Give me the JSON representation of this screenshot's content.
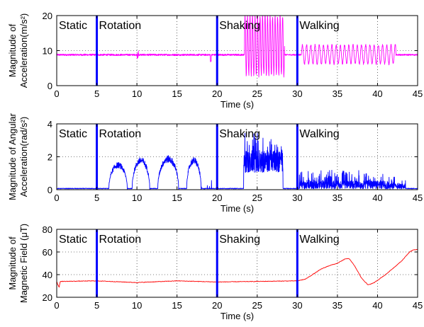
{
  "chart_data": [
    {
      "type": "line",
      "xlabel": "Time (s)",
      "ylabel_lines": [
        "Magnitude of",
        "Acceleration(m/s²)"
      ],
      "xlim": [
        0,
        45
      ],
      "ylim": [
        0,
        20
      ],
      "xticks": [
        0,
        5,
        10,
        15,
        20,
        25,
        30,
        35,
        40,
        45
      ],
      "yticks": [
        0,
        10,
        20
      ],
      "grid": "dotted",
      "series_color": "#ff00ff",
      "boundary_color": "#0000ff",
      "boundaries": [
        5,
        20,
        30
      ],
      "phases": [
        {
          "label": "Static",
          "x": 0
        },
        {
          "label": "Rotation",
          "x": 5
        },
        {
          "label": "Shaking",
          "x": 20
        },
        {
          "label": "Walking",
          "x": 30
        }
      ],
      "segments": [
        {
          "t0": 0,
          "t1": 23.4,
          "base": 8.8,
          "noise": 0.25
        },
        {
          "t0": 23.4,
          "t1": 28.4,
          "base": 11.5,
          "amp": 8.5,
          "freq": 3.2,
          "noise": 0.6
        },
        {
          "t0": 28.4,
          "t1": 30.5,
          "base": 8.8,
          "noise": 0.2
        },
        {
          "t0": 30.5,
          "t1": 42.3,
          "base": 8.9,
          "amp": 2.7,
          "freq": 1.9,
          "noise": 0.3
        },
        {
          "t0": 42.3,
          "t1": 45,
          "base": 8.8,
          "noise": 0.2
        }
      ]
    },
    {
      "type": "line",
      "xlabel": "Time (s)",
      "ylabel_lines": [
        "Magnitude of Angular",
        "Acceleration(rad/s²)"
      ],
      "xlim": [
        0,
        45
      ],
      "ylim": [
        0,
        4
      ],
      "xticks": [
        0,
        5,
        10,
        15,
        20,
        25,
        30,
        35,
        40,
        45
      ],
      "yticks": [
        0,
        2,
        4
      ],
      "grid": "dotted",
      "series_color": "#0000ff",
      "boundary_color": "#0000ff",
      "boundaries": [
        5,
        20,
        30
      ],
      "phases": [
        {
          "label": "Static",
          "x": 0
        },
        {
          "label": "Rotation",
          "x": 5
        },
        {
          "label": "Shaking",
          "x": 20
        },
        {
          "label": "Walking",
          "x": 30
        }
      ],
      "bumps": [
        [
          6.5,
          8.8,
          1.6
        ],
        [
          9.4,
          11.6,
          1.9
        ],
        [
          12.6,
          15.2,
          2.0
        ],
        [
          16.2,
          18.0,
          1.9
        ]
      ],
      "shaking": {
        "t0": 23.3,
        "t1": 28.2,
        "level": 1.9,
        "peak": 3.5
      },
      "walking": {
        "t0": 30.2,
        "t1": 43.5,
        "level": 0.5,
        "peak": 1.2
      }
    },
    {
      "type": "line",
      "xlabel": "Time (s)",
      "ylabel_lines": [
        "Magnitude of",
        "Magnetic Field (μT)"
      ],
      "xlim": [
        0,
        45
      ],
      "ylim": [
        20,
        80
      ],
      "xticks": [
        0,
        5,
        10,
        15,
        20,
        25,
        30,
        35,
        40,
        45
      ],
      "yticks": [
        20,
        40,
        60,
        80
      ],
      "grid": "dotted",
      "series_color": "#ff0000",
      "boundary_color": "#0000ff",
      "boundaries": [
        5,
        20,
        30
      ],
      "phases": [
        {
          "label": "Static",
          "x": 0
        },
        {
          "label": "Rotation",
          "x": 5
        },
        {
          "label": "Shaking",
          "x": 20
        },
        {
          "label": "Walking",
          "x": 30
        }
      ],
      "keypoints": [
        [
          0,
          34
        ],
        [
          0.15,
          31
        ],
        [
          0.3,
          29
        ],
        [
          0.45,
          34
        ],
        [
          5,
          34.5
        ],
        [
          10,
          33
        ],
        [
          15,
          34.5
        ],
        [
          20,
          33.5
        ],
        [
          25,
          34
        ],
        [
          30,
          34.5
        ],
        [
          31,
          36
        ],
        [
          32,
          40.5
        ],
        [
          33,
          45
        ],
        [
          34,
          48
        ],
        [
          35,
          50
        ],
        [
          36,
          54
        ],
        [
          36.5,
          54
        ],
        [
          37.2,
          47
        ],
        [
          38,
          37
        ],
        [
          38.8,
          31
        ],
        [
          39.5,
          32.5
        ],
        [
          40.2,
          36
        ],
        [
          41,
          40
        ],
        [
          42,
          46
        ],
        [
          43,
          52
        ],
        [
          44,
          60
        ],
        [
          44.5,
          62
        ],
        [
          45,
          62
        ]
      ]
    }
  ]
}
